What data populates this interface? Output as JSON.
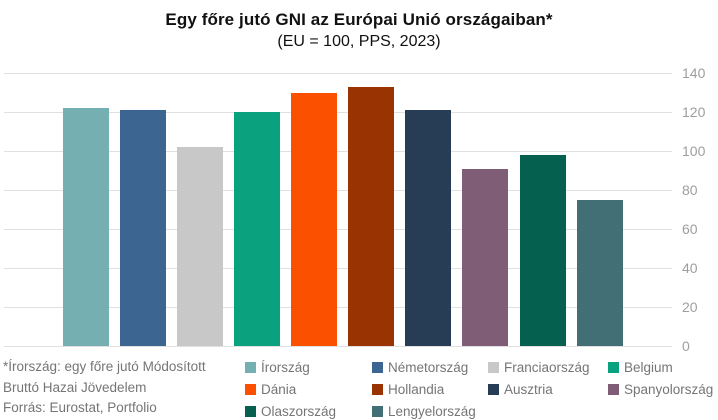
{
  "title": "Egy főre jutó GNI az Európai Unió országaiban*",
  "subtitle": "(EU = 100, PPS, 2023)",
  "footnote": {
    "line1": "*Írország: egy főre jutó Módosított",
    "line2": "Bruttó Hazai Jövedelem",
    "line3": "Forrás: Eurostat, Portfolio"
  },
  "chart_data": {
    "type": "bar",
    "title": "Egy főre jutó GNI az Európai Unió országaiban*",
    "subtitle": "(EU = 100, PPS, 2023)",
    "categories": [
      "Írország",
      "Németország",
      "Franciaország",
      "Belgium",
      "Dánia",
      "Hollandia",
      "Ausztria",
      "Spanyolország",
      "Olaszország",
      "Lengyelország"
    ],
    "values": [
      122,
      121,
      102,
      120,
      130,
      133,
      121,
      91,
      98,
      75
    ],
    "bar_colors": [
      "#75AFB2",
      "#3D6591",
      "#C8C8C8",
      "#0AA17E",
      "#FB5000",
      "#993301",
      "#273C55",
      "#7F5D77",
      "#056050",
      "#416F75"
    ],
    "ylim": [
      0,
      140
    ],
    "yticks": [
      0,
      20,
      40,
      60,
      80,
      100,
      120,
      140
    ],
    "ytick_side": "right",
    "grid": true,
    "gridline_color": "#E0E0E0",
    "tick_label_color": "#9E9E9E",
    "legend_position": "bottom",
    "legend_columns": 4,
    "legend_text_color": "#757575"
  }
}
